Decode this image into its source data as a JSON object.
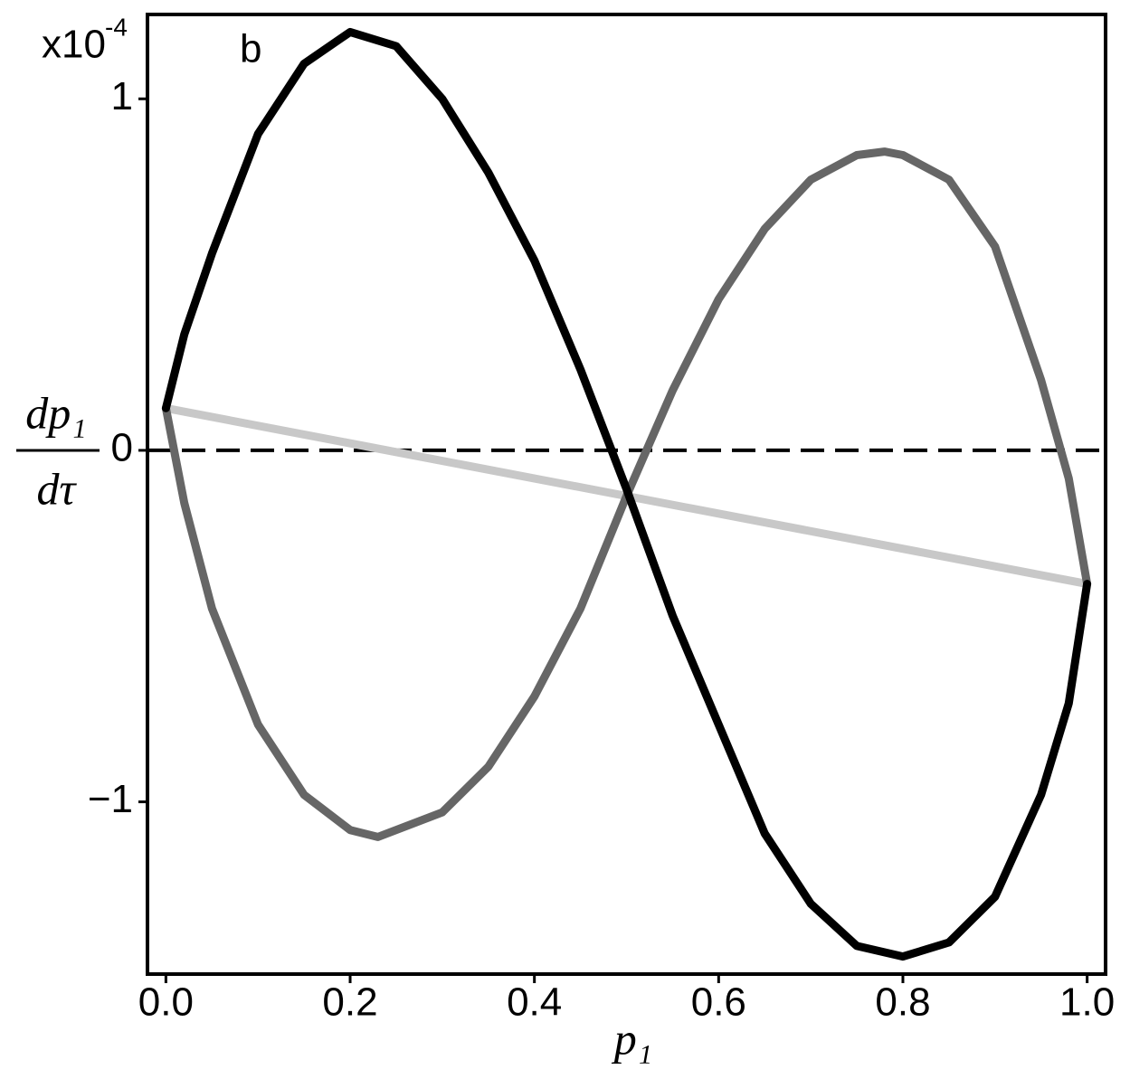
{
  "chart_data": {
    "type": "line",
    "panel_label": "b",
    "y_multiplier": {
      "base": "x10",
      "exponent": "-4"
    },
    "ylabel": {
      "numerator": "dp₁",
      "denominator": "dτ"
    },
    "xlabel": "p₁",
    "xlim": [
      -0.02,
      1.02
    ],
    "ylim": [
      -1.49,
      1.24
    ],
    "xticks": [
      {
        "value": 0,
        "label": "0.0"
      },
      {
        "value": 0.2,
        "label": "0.2"
      },
      {
        "value": 0.4,
        "label": "0.4"
      },
      {
        "value": 0.6,
        "label": "0.6"
      },
      {
        "value": 0.8,
        "label": "0.8"
      },
      {
        "value": 1,
        "label": "1.0"
      }
    ],
    "yticks": [
      {
        "value": -1,
        "label": "−1"
      },
      0,
      1
    ],
    "reference_line": 0,
    "series": [
      {
        "color": "#000000",
        "x": [
          0,
          0.02,
          0.05,
          0.1,
          0.15,
          0.2,
          0.25,
          0.3,
          0.35,
          0.4,
          0.45,
          0.5,
          0.55,
          0.6,
          0.65,
          0.7,
          0.75,
          0.8,
          0.85,
          0.9,
          0.95,
          0.98,
          1
        ],
        "values": [
          0.12,
          0.33,
          0.56,
          0.9,
          1.1,
          1.19,
          1.15,
          1.0,
          0.79,
          0.54,
          0.23,
          -0.11,
          -0.47,
          -0.78,
          -1.09,
          -1.29,
          -1.41,
          -1.44,
          -1.4,
          -1.27,
          -0.98,
          -0.72,
          -0.38
        ]
      },
      {
        "color": "#666666",
        "x": [
          0,
          0.02,
          0.05,
          0.1,
          0.15,
          0.2,
          0.23,
          0.3,
          0.35,
          0.4,
          0.45,
          0.5,
          0.55,
          0.6,
          0.65,
          0.7,
          0.75,
          0.78,
          0.8,
          0.85,
          0.9,
          0.95,
          0.98,
          1
        ],
        "values": [
          0.12,
          -0.15,
          -0.45,
          -0.78,
          -0.98,
          -1.08,
          -1.1,
          -1.03,
          -0.9,
          -0.7,
          -0.45,
          -0.13,
          0.17,
          0.43,
          0.63,
          0.77,
          0.84,
          0.85,
          0.84,
          0.77,
          0.58,
          0.2,
          -0.08,
          -0.38
        ]
      },
      {
        "color": "#c8c8c8",
        "x": [
          0,
          1
        ],
        "values": [
          0.12,
          -0.38
        ]
      }
    ]
  }
}
